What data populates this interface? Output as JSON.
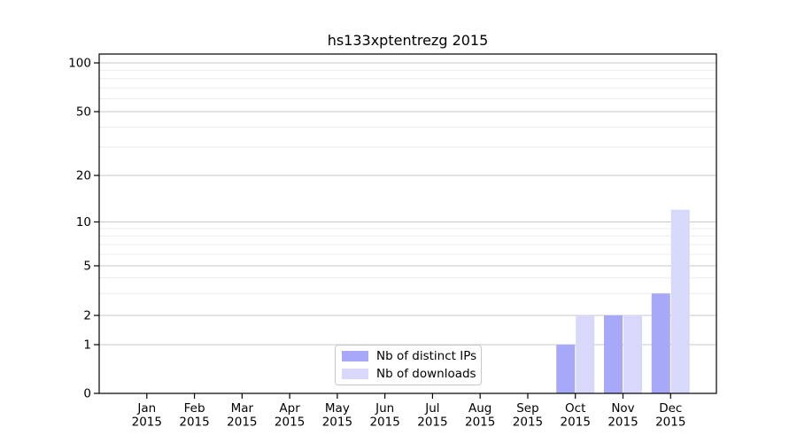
{
  "chart_data": {
    "type": "bar",
    "title": "hs133xptentrezg 2015",
    "categories": [
      "Jan 2015",
      "Feb 2015",
      "Mar 2015",
      "Apr 2015",
      "May 2015",
      "Jun 2015",
      "Jul 2015",
      "Aug 2015",
      "Sep 2015",
      "Oct 2015",
      "Nov 2015",
      "Dec 2015"
    ],
    "series": [
      {
        "name": "Nb of distinct IPs",
        "color": "#a8a8f8",
        "values": [
          0,
          0,
          0,
          0,
          0,
          0,
          0,
          0,
          0,
          1,
          2,
          3
        ]
      },
      {
        "name": "Nb of downloads",
        "color": "#d8d8fa",
        "values": [
          0,
          0,
          0,
          0,
          0,
          0,
          0,
          0,
          0,
          2,
          2,
          12
        ]
      }
    ],
    "xlabel": "",
    "ylabel": "",
    "yscale": "log-like",
    "ylim": [
      0,
      113
    ],
    "y_ticks": [
      0,
      1,
      2,
      5,
      10,
      20,
      50,
      100
    ],
    "y_minor_ticks": [
      3,
      4,
      6,
      7,
      8,
      9,
      30,
      40,
      60,
      70,
      80,
      90
    ],
    "grid": "on",
    "legend_position": "lower center"
  },
  "colors": {
    "major_grid": "#c9c9c9",
    "minor_grid": "#ececec",
    "axis": "#000000",
    "text": "#000000",
    "background": "#ffffff"
  }
}
